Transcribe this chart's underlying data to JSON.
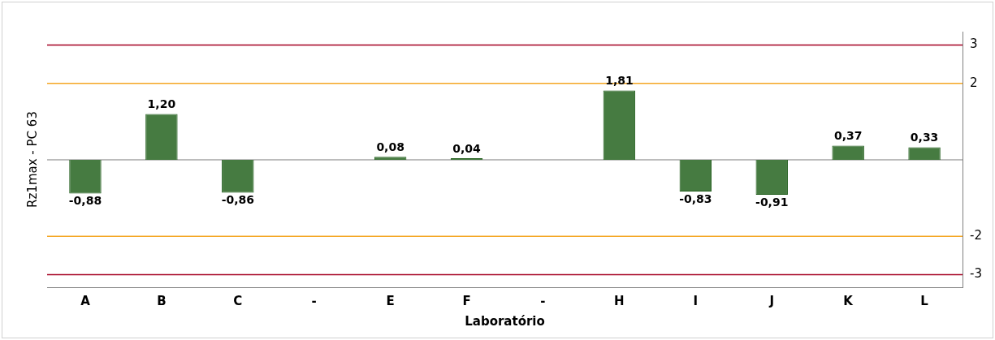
{
  "chart_data": {
    "type": "bar",
    "xlabel": "Laboratório",
    "ylabel": "Rz1max - PC 63",
    "categories": [
      "A",
      "B",
      "C",
      "-",
      "E",
      "F",
      "-",
      "H",
      "I",
      "J",
      "K",
      "L"
    ],
    "values": [
      -0.88,
      1.2,
      -0.86,
      null,
      0.08,
      0.04,
      null,
      1.81,
      -0.83,
      -0.91,
      0.37,
      0.33
    ],
    "value_labels": [
      "-0,88",
      "1,20",
      "-0,86",
      null,
      "0,08",
      "0,04",
      null,
      "1,81",
      "-0,83",
      "-0,91",
      "0,37",
      "0,33"
    ],
    "color": "#467b41",
    "ylim": [
      -3.33,
      3.35
    ],
    "yticks": [
      -3,
      -2,
      2,
      3
    ],
    "grid": false,
    "legend": false,
    "ref_lines": [
      {
        "axis": "y",
        "value": 3,
        "color": "#a50021"
      },
      {
        "axis": "y",
        "value": 2,
        "color": "#f5a623"
      },
      {
        "axis": "y",
        "value": -2,
        "color": "#f5a623"
      },
      {
        "axis": "y",
        "value": -3,
        "color": "#a50021"
      }
    ]
  }
}
